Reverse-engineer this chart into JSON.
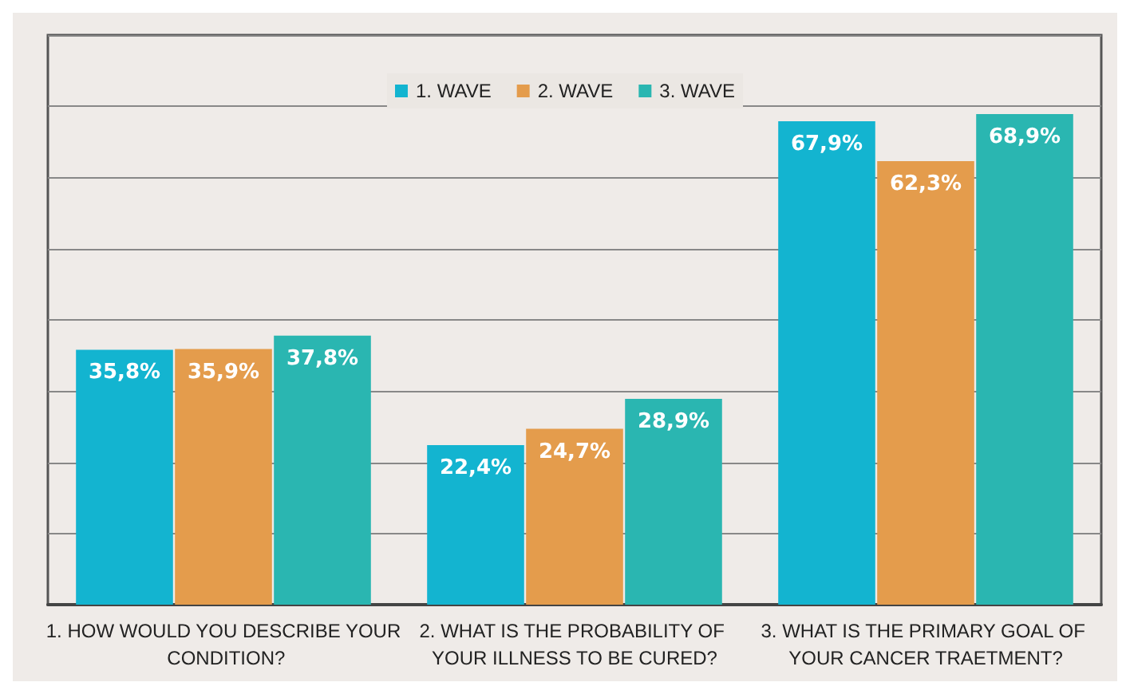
{
  "chart_data": {
    "type": "bar",
    "categories": [
      "1. HOW WOULD YOU DESCRIBE YOUR CONDITION?",
      "2. WHAT IS THE PROBABILITY OF YOUR ILLNESS TO BE CURED?",
      "3. WHAT IS THE PRIMARY GOAL OF YOUR CANCER TRAETMENT?"
    ],
    "series": [
      {
        "name": "1. WAVE",
        "color": "#13b4d0",
        "values": [
          35.8,
          22.4,
          67.9
        ],
        "value_labels": [
          "35,8%",
          "22,4%",
          "67,9%"
        ]
      },
      {
        "name": "2. WAVE",
        "color": "#e49c4c",
        "values": [
          35.9,
          24.7,
          62.3
        ],
        "value_labels": [
          "35,9%",
          "24,7%",
          "62,3%"
        ]
      },
      {
        "name": "3. WAVE",
        "color": "#2ab6b1",
        "values": [
          37.8,
          28.9,
          68.9
        ],
        "value_labels": [
          "37,8%",
          "28,9%",
          "68,9%"
        ]
      }
    ],
    "ylim": [
      0,
      80
    ],
    "yticks": [
      {
        "value": 0,
        "label": null
      },
      {
        "value": 10,
        "label": null
      },
      {
        "value": 20,
        "label": null
      },
      {
        "value": 30,
        "label": null
      },
      {
        "value": 40,
        "label": null
      },
      {
        "value": 50,
        "label": null
      },
      {
        "value": 60,
        "label": null
      },
      {
        "value": 70,
        "label": null
      },
      {
        "value": 80,
        "label": null
      }
    ],
    "grid": "y",
    "legend": "top",
    "tick_labels": "x"
  }
}
